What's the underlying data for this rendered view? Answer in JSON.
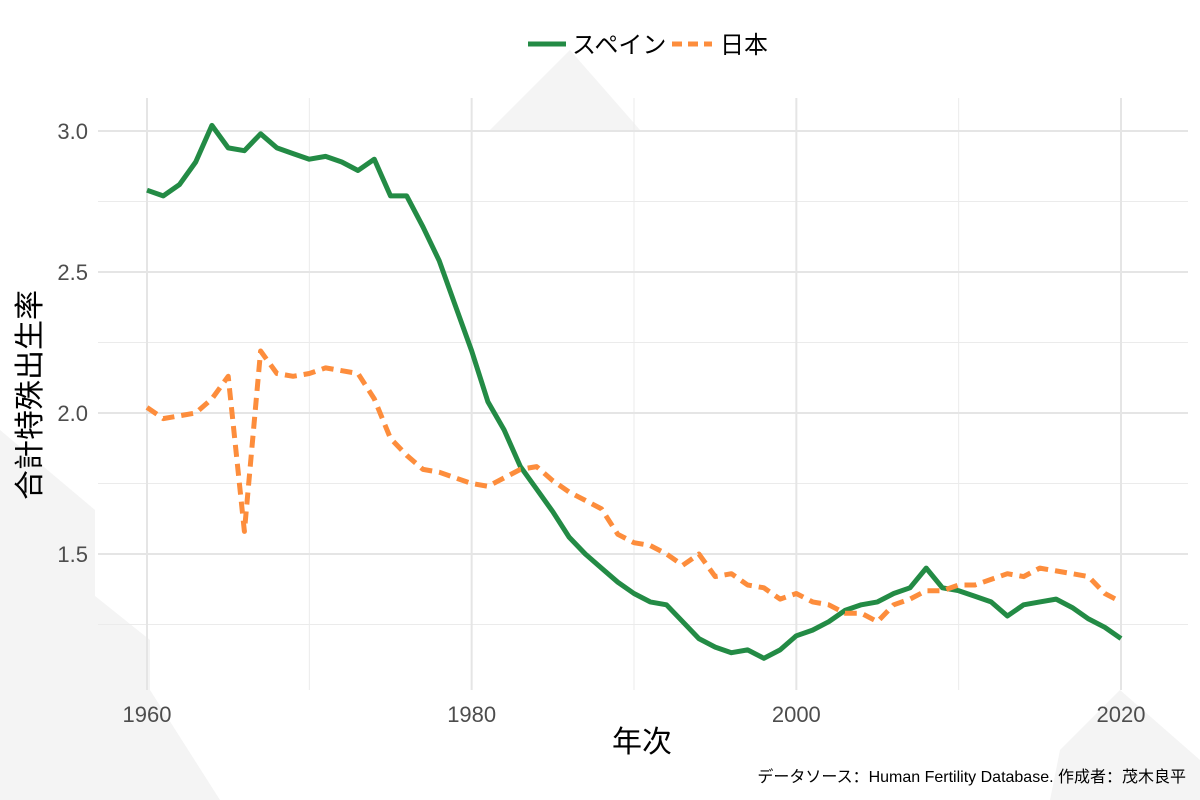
{
  "chart_data": {
    "type": "line",
    "title": "",
    "xlabel": "年次",
    "ylabel": "合計特殊出生率",
    "caption": "データソース：Human Fertility Database. 作成者：茂木良平",
    "xlim": [
      1957,
      2024
    ],
    "ylim": [
      1.09,
      3.12
    ],
    "xticks": [
      1960,
      1980,
      2000,
      2020
    ],
    "xtick_labels": [
      "1960",
      "1980",
      "2000",
      "2020"
    ],
    "yticks": [
      1.5,
      2.0,
      2.5,
      3.0
    ],
    "ytick_labels": [
      "1.5",
      "2.0",
      "2.5",
      "3.0"
    ],
    "grid": true,
    "legend_position": "top",
    "x": [
      1960,
      1961,
      1962,
      1963,
      1964,
      1965,
      1966,
      1967,
      1968,
      1969,
      1970,
      1971,
      1972,
      1973,
      1974,
      1975,
      1976,
      1977,
      1978,
      1979,
      1980,
      1981,
      1982,
      1983,
      1984,
      1985,
      1986,
      1987,
      1988,
      1989,
      1990,
      1991,
      1992,
      1993,
      1994,
      1995,
      1996,
      1997,
      1998,
      1999,
      2000,
      2001,
      2002,
      2003,
      2004,
      2005,
      2006,
      2007,
      2008,
      2009,
      2010,
      2011,
      2012,
      2013,
      2014,
      2015,
      2016,
      2017,
      2018,
      2019,
      2020
    ],
    "series": [
      {
        "name": "スペイン",
        "color": "#238b45",
        "style": "solid",
        "values": [
          2.79,
          2.77,
          2.81,
          2.89,
          3.02,
          2.94,
          2.93,
          2.99,
          2.94,
          2.92,
          2.9,
          2.91,
          2.89,
          2.86,
          2.9,
          2.77,
          2.77,
          2.66,
          2.54,
          2.38,
          2.22,
          2.04,
          1.94,
          1.81,
          1.73,
          1.65,
          1.56,
          1.5,
          1.45,
          1.4,
          1.36,
          1.33,
          1.32,
          1.26,
          1.2,
          1.17,
          1.15,
          1.16,
          1.13,
          1.16,
          1.21,
          1.23,
          1.26,
          1.3,
          1.32,
          1.33,
          1.36,
          1.38,
          1.45,
          1.38,
          1.37,
          1.35,
          1.33,
          1.28,
          1.32,
          1.33,
          1.34,
          1.31,
          1.27,
          1.24,
          1.2
        ]
      },
      {
        "name": "日本",
        "color": "#fd8d3c",
        "style": "dashed",
        "values": [
          2.02,
          1.98,
          1.99,
          2.0,
          2.05,
          2.13,
          1.58,
          2.22,
          2.14,
          2.13,
          2.14,
          2.16,
          2.15,
          2.14,
          2.05,
          1.91,
          1.85,
          1.8,
          1.79,
          1.77,
          1.75,
          1.74,
          1.77,
          1.8,
          1.81,
          1.76,
          1.72,
          1.69,
          1.66,
          1.57,
          1.54,
          1.53,
          1.5,
          1.46,
          1.5,
          1.42,
          1.43,
          1.39,
          1.38,
          1.34,
          1.36,
          1.33,
          1.32,
          1.29,
          1.29,
          1.26,
          1.32,
          1.34,
          1.37,
          1.37,
          1.39,
          1.39,
          1.41,
          1.43,
          1.42,
          1.45,
          1.44,
          1.43,
          1.42,
          1.36,
          1.33
        ]
      }
    ]
  }
}
